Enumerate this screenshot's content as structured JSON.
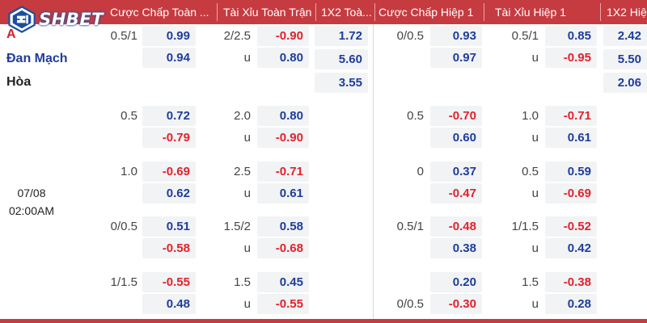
{
  "header": {
    "columns": [
      {
        "label": "Cược Chấp Toàn ..."
      },
      {
        "label": "Tài Xỉu Toàn Trận"
      },
      {
        "label": "1X2 Toà..."
      },
      {
        "label": "Cược Chấp Hiệp 1"
      },
      {
        "label": "Tài Xỉu Hiệp 1"
      },
      {
        "label": "1X2 Hiệ..."
      }
    ]
  },
  "logo": {
    "text": "SHBET"
  },
  "teams": {
    "home": "A",
    "away": "Đan Mạch",
    "draw": "Hòa"
  },
  "match_time": {
    "date": "07/08",
    "time": "02:00AM"
  },
  "colors": {
    "header": "#c63b40",
    "positive": "#1f3d99",
    "negative": "#e0232c"
  },
  "rows": [
    {
      "ft_hdp_line": "0.5/1",
      "ft_hdp_top": "0.99",
      "ft_hdp_bot": "0.94",
      "ft_ou_line": "2/2.5",
      "ft_ou_u": "u",
      "ft_ou_top": "-0.90",
      "ft_ou_bot": "0.80",
      "ft_1x2": [
        "1.72",
        "5.60",
        "3.55"
      ],
      "h1_hdp_line": "0/0.5",
      "h1_hdp_top": "0.93",
      "h1_hdp_bot": "0.97",
      "h1_ou_line": "0.5/1",
      "h1_ou_u": "u",
      "h1_ou_top": "0.85",
      "h1_ou_bot": "-0.95",
      "h1_1x2": [
        "2.42",
        "5.50",
        "2.06"
      ]
    },
    {
      "ft_hdp_line": "0.5",
      "ft_hdp_top": "0.72",
      "ft_hdp_bot": "-0.79",
      "ft_ou_line": "2.0",
      "ft_ou_u": "u",
      "ft_ou_top": "0.80",
      "ft_ou_bot": "-0.90",
      "h1_hdp_line": "0.5",
      "h1_hdp_top": "-0.70",
      "h1_hdp_bot": "0.60",
      "h1_ou_line": "1.0",
      "h1_ou_u": "u",
      "h1_ou_top": "-0.71",
      "h1_ou_bot": "0.61"
    },
    {
      "ft_hdp_line": "1.0",
      "ft_hdp_top": "-0.69",
      "ft_hdp_bot": "0.62",
      "ft_ou_line": "2.5",
      "ft_ou_u": "u",
      "ft_ou_top": "-0.71",
      "ft_ou_bot": "0.61",
      "h1_hdp_line": "0",
      "h1_hdp_top": "0.37",
      "h1_hdp_bot": "-0.47",
      "h1_ou_line": "0.5",
      "h1_ou_u": "u",
      "h1_ou_top": "0.59",
      "h1_ou_bot": "-0.69"
    },
    {
      "ft_hdp_line": "0/0.5",
      "ft_hdp_top": "0.51",
      "ft_hdp_bot": "-0.58",
      "ft_ou_line": "1.5/2",
      "ft_ou_u": "u",
      "ft_ou_top": "0.58",
      "ft_ou_bot": "-0.68",
      "h1_hdp_line": "0.5/1",
      "h1_hdp_top": "-0.48",
      "h1_hdp_bot": "0.38",
      "h1_ou_line": "1/1.5",
      "h1_ou_u": "u",
      "h1_ou_top": "-0.52",
      "h1_ou_bot": "0.42"
    },
    {
      "ft_hdp_line": "1/1.5",
      "ft_hdp_top": "-0.55",
      "ft_hdp_bot": "0.48",
      "ft_ou_line": "1.5",
      "ft_ou_u": "u",
      "ft_ou_top": "0.45",
      "ft_ou_bot": "-0.55",
      "h1_hdp_line": "0/0.5",
      "h1_hdp_top": "0.20",
      "h1_hdp_bot": "-0.30",
      "h1_ou_line": "1.5",
      "h1_ou_u": "u",
      "h1_ou_top": "-0.38",
      "h1_ou_bot": "0.28"
    }
  ]
}
